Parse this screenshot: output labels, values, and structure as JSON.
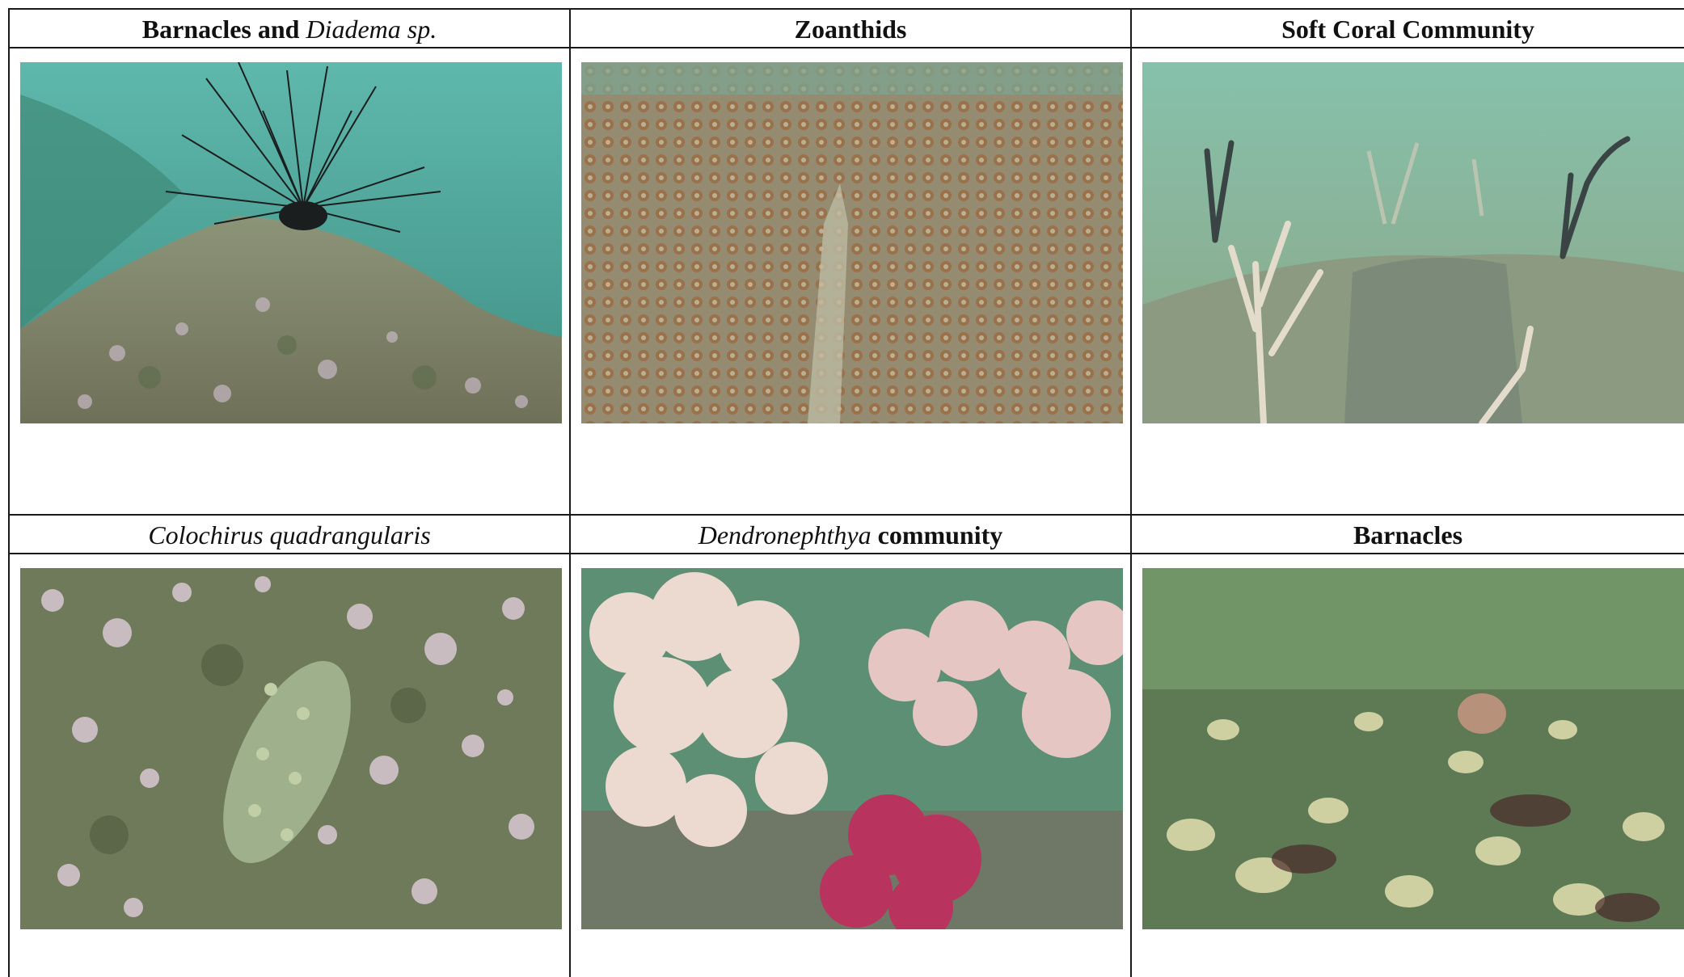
{
  "headers": {
    "r1c1": {
      "prefix": "Barnacles and ",
      "italic": "Diadema sp."
    },
    "r1c2": {
      "text": "Zoanthids"
    },
    "r1c3": {
      "text": "Soft Coral Community"
    },
    "r2c1": {
      "italic": "Colochirus quadrangularis"
    },
    "r2c2": {
      "italic": "Dendronephthya",
      "suffix": " community"
    },
    "r2c3": {
      "text": "Barnacles"
    }
  },
  "colors": {
    "border": "#1a1a1a",
    "water_teal": "#4faf9f",
    "water_green": "#8fb59a",
    "rock": "#8a8a6e",
    "zoanthid": "#9a7550",
    "soft_coral_pink": "#e9cfc6",
    "soft_coral_red": "#b8345e",
    "sea_cucumber": "#9fb08c"
  }
}
